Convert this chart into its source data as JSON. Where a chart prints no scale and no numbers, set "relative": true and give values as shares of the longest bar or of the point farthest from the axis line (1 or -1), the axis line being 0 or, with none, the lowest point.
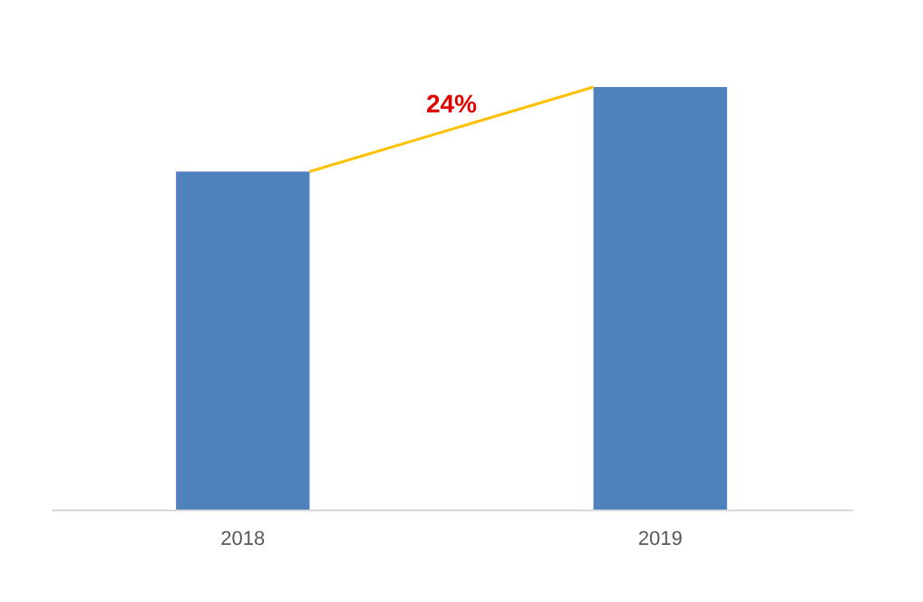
{
  "chart_data": {
    "type": "bar",
    "relative": true,
    "categories": [
      "2018",
      "2019"
    ],
    "values": [
      0.8,
      1
    ],
    "color": "#4f81bd",
    "annotations": [
      "24%"
    ]
  }
}
